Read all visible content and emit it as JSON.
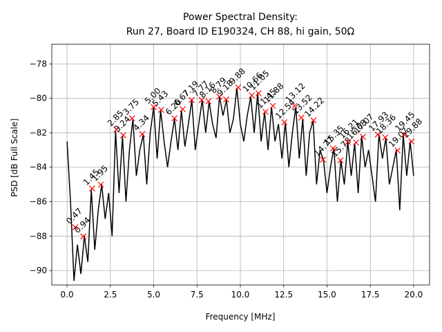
{
  "chart_data": {
    "type": "line",
    "title": [
      "Power Spectral Density:",
      "Run 27, Board ID E190324, CH 88, hi gain, 50Ω"
    ],
    "x_label": "Frequency [MHz]",
    "y_label": "PSD [dB Full Scale]",
    "xlim": [
      -0.88,
      20.92
    ],
    "ylim": [
      -90.84,
      -76.86
    ],
    "xticks": [
      {
        "value": 0,
        "label": "0.0"
      },
      2.5,
      {
        "value": 5,
        "label": "5.0"
      },
      7.5,
      {
        "value": 10,
        "label": "10.0"
      },
      12.5,
      {
        "value": 15,
        "label": "15.0"
      },
      17.5,
      {
        "value": 20,
        "label": "20.0"
      }
    ],
    "yticks": [
      {
        "value": -90,
        "label": "−90"
      },
      {
        "value": -88,
        "label": "−88"
      },
      {
        "value": -86,
        "label": "−86"
      },
      {
        "value": -84,
        "label": "−84"
      },
      {
        "value": -82,
        "label": "−82"
      },
      {
        "value": -80,
        "label": "−80"
      },
      {
        "value": -78,
        "label": "−78"
      }
    ],
    "grid": true,
    "series": [
      {
        "color": "#000000",
        "x": [
          0,
          0.2,
          0.4,
          0.6,
          0.8,
          1,
          1.2,
          1.4,
          1.6,
          1.8,
          2,
          2.2,
          2.4,
          2.6,
          2.8,
          3,
          3.2,
          3.4,
          3.6,
          3.8,
          4,
          4.2,
          4.4,
          4.6,
          4.8,
          5,
          5.2,
          5.4,
          5.6,
          5.8,
          6,
          6.2,
          6.4,
          6.6,
          6.8,
          7,
          7.2,
          7.4,
          7.6,
          7.8,
          8,
          8.2,
          8.4,
          8.6,
          8.8,
          9,
          9.2,
          9.4,
          9.6,
          9.8,
          10,
          10.2,
          10.4,
          10.6,
          10.8,
          11,
          11.2,
          11.4,
          11.6,
          11.8,
          12,
          12.2,
          12.4,
          12.6,
          12.8,
          13,
          13.2,
          13.4,
          13.6,
          13.8,
          14,
          14.2,
          14.4,
          14.6,
          14.8,
          15,
          15.2,
          15.4,
          15.6,
          15.8,
          16,
          16.2,
          16.4,
          16.6,
          16.8,
          17,
          17.2,
          17.4,
          17.6,
          17.8,
          18,
          18.2,
          18.4,
          18.6,
          18.8,
          19,
          19.2,
          19.4,
          19.6,
          19.8,
          20
        ],
        "values": [
          -82.5,
          -86.0,
          -90.6,
          -88.5,
          -90.2,
          -88.0,
          -89.5,
          -85.3,
          -88.8,
          -86.5,
          -85.0,
          -87.0,
          -85.5,
          -88.0,
          -81.9,
          -85.5,
          -82.2,
          -86.0,
          -83.0,
          -81.2,
          -84.5,
          -83.0,
          -82.1,
          -85.0,
          -82.0,
          -80.5,
          -83.5,
          -80.7,
          -82.5,
          -84.0,
          -82.5,
          -81.2,
          -83.0,
          -80.7,
          -82.8,
          -81.5,
          -80.1,
          -83.0,
          -81.5,
          -80.1,
          -82.0,
          -80.2,
          -81.5,
          -82.3,
          -79.9,
          -81.0,
          -80.1,
          -82.0,
          -81.2,
          -79.4,
          -81.5,
          -82.5,
          -81.0,
          -79.9,
          -82.0,
          -79.7,
          -82.5,
          -80.8,
          -83.0,
          -80.5,
          -82.5,
          -81.5,
          -83.5,
          -81.4,
          -84.0,
          -82.0,
          -80.5,
          -83.5,
          -81.2,
          -84.5,
          -82.0,
          -81.3,
          -85.0,
          -83.0,
          -83.6,
          -85.5,
          -84.0,
          -82.9,
          -86.0,
          -83.6,
          -85.0,
          -82.5,
          -84.5,
          -82.6,
          -85.5,
          -82.2,
          -84.0,
          -83.0,
          -84.5,
          -86.0,
          -82.1,
          -83.5,
          -82.3,
          -85.0,
          -84.0,
          -83.0,
          -86.5,
          -82.1,
          -84.5,
          -82.5,
          -84.5
        ]
      },
      {
        "color": "#ff0000",
        "marker": "x",
        "x": [
          0.47,
          0.94,
          1.45,
          1.95,
          2.85,
          3.24,
          3.75,
          4.34,
          5.0,
          5.43,
          6.2,
          6.67,
          7.19,
          7.77,
          8.16,
          8.79,
          9.18,
          9.88,
          10.66,
          11.05,
          11.45,
          11.88,
          12.54,
          13.12,
          13.52,
          14.22,
          14.77,
          15.35,
          15.78,
          16.21,
          16.68,
          17.07,
          17.93,
          18.36,
          19.07,
          19.45,
          19.88
        ],
        "values": [
          -87.49,
          -88.02,
          -85.24,
          -85.01,
          -81.81,
          -82.15,
          -81.16,
          -82.08,
          -80.51,
          -80.67,
          -81.16,
          -80.63,
          -80.1,
          -80.1,
          -80.17,
          -79.9,
          -80.06,
          -79.37,
          -79.83,
          -79.71,
          -80.78,
          -80.44,
          -81.39,
          -80.44,
          -81.12,
          -81.28,
          -83.56,
          -82.91,
          -83.6,
          -82.53,
          -82.57,
          -82.23,
          -82.11,
          -82.27,
          -83.03,
          -82.11,
          -82.5
        ],
        "labels": [
          "0.47",
          "0.94",
          "1.45",
          "1.95",
          "2.85",
          "3.24",
          "3.75",
          "4.34",
          "5.00",
          "5.43",
          "6.20",
          "6.67",
          "7.19",
          "7.77",
          "8.16",
          "8.79",
          "9.18",
          "9.88",
          "10.66",
          "11.05",
          "11.45",
          "11.88",
          "12.54",
          "13.12",
          "13.52",
          "14.22",
          "14.77",
          "15.35",
          "15.78",
          "16.21",
          "16.68",
          "17.07",
          "17.93",
          "18.36",
          "19.07",
          "19.45",
          "19.88"
        ]
      }
    ]
  }
}
